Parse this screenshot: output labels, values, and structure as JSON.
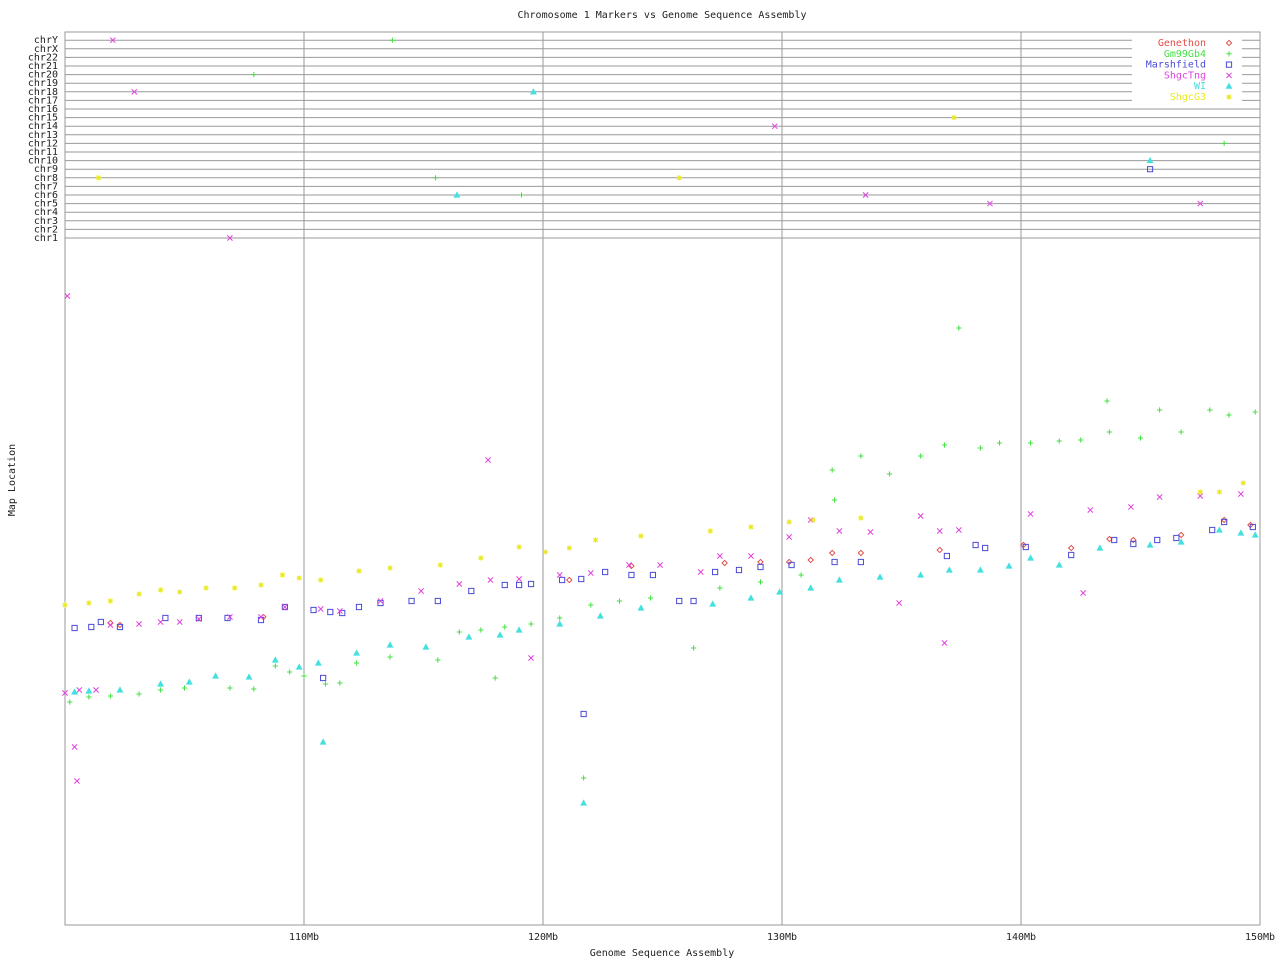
{
  "chart_data": {
    "type": "scatter",
    "title": "Chromosome 1 Markers vs Genome Sequence Assembly",
    "x_label": "Genome Sequence Assembly",
    "y_label": "Map Location",
    "xlim": [
      100,
      150
    ],
    "xticks": [
      {
        "value": 110,
        "label": "110Mb"
      },
      {
        "value": 120,
        "label": "120Mb"
      },
      {
        "value": 130,
        "label": "130Mb"
      },
      {
        "value": 140,
        "label": "140Mb"
      },
      {
        "value": 150,
        "label": "150Mb"
      }
    ],
    "ylim": [
      0,
      68
    ],
    "chromosomes": [
      "chr1",
      "chr2",
      "chr3",
      "chr4",
      "chr5",
      "chr6",
      "chr7",
      "chr8",
      "chr9",
      "chr10",
      "chr11",
      "chr12",
      "chr13",
      "chr14",
      "chr15",
      "chr16",
      "chr17",
      "chr18",
      "chr19",
      "chr20",
      "chr21",
      "chr22",
      "chrX",
      "chrY"
    ],
    "grid": true,
    "legend": "upper-right",
    "series": [
      {
        "name": "Genethon",
        "color": "#e0504a",
        "marker": "diamond",
        "x": [
          101.9,
          102.3,
          108.3,
          121.1,
          123.7,
          127.6,
          129.1,
          130.3,
          131.2,
          132.1,
          133.3,
          136.6,
          140.1,
          142.1,
          143.7,
          144.7,
          146.7,
          148.5,
          149.6
        ],
        "y": [
          30.2,
          30.0,
          30.8,
          34.5,
          35.9,
          36.2,
          36.3,
          36.3,
          36.5,
          37.2,
          37.2,
          37.5,
          38.0,
          37.7,
          38.6,
          38.5,
          39.0,
          40.5,
          40.0
        ]
      },
      {
        "name": "Gm99Gb4",
        "color": "#44e044",
        "marker": "plus",
        "x": [
          100.2,
          101.0,
          101.9,
          103.1,
          104.0,
          105.0,
          106.9,
          107.9,
          108.8,
          109.4,
          110.0,
          110.9,
          111.5,
          112.2,
          113.6,
          115.6,
          116.5,
          117.4,
          118.0,
          118.4,
          119.5,
          120.7,
          122.0,
          123.2,
          124.5,
          126.3,
          127.4,
          129.1,
          130.8,
          121.7,
          132.1,
          132.2,
          133.3,
          134.5,
          135.8,
          136.8,
          137.4,
          138.3,
          139.1,
          140.4,
          141.6,
          142.5,
          143.6,
          143.7,
          145.0,
          145.8,
          146.7,
          147.9,
          148.7,
          149.8
        ],
        "y": [
          22.3,
          22.8,
          22.9,
          23.1,
          23.5,
          23.7,
          23.7,
          23.6,
          25.9,
          25.3,
          24.9,
          24.1,
          24.2,
          26.2,
          26.8,
          26.5,
          29.3,
          29.5,
          24.7,
          29.8,
          30.1,
          30.7,
          32.0,
          32.4,
          32.7,
          27.7,
          33.7,
          34.3,
          35.0,
          14.7,
          45.5,
          42.5,
          46.9,
          45.1,
          46.9,
          48.0,
          59.7,
          47.7,
          48.2,
          48.2,
          48.4,
          48.5,
          52.4,
          49.3,
          48.7,
          51.5,
          49.3,
          51.5,
          51.0,
          51.3
        ],
        "off_x": [
          113.7,
          107.9,
          115.5,
          119.1,
          148.5
        ],
        "off_chrom": [
          "chrY",
          "chr20",
          "chr8",
          "chr6",
          "chr12"
        ]
      },
      {
        "name": "Marshfield",
        "color": "#4a4ad8",
        "marker": "square",
        "x": [
          100.4,
          101.1,
          101.5,
          102.3,
          104.2,
          105.6,
          106.8,
          108.2,
          109.2,
          110.4,
          111.1,
          111.6,
          112.3,
          113.2,
          114.5,
          115.6,
          117.0,
          118.4,
          119.0,
          119.5,
          120.8,
          121.6,
          122.6,
          123.7,
          124.6,
          125.7,
          126.3,
          127.2,
          128.2,
          129.1,
          130.4,
          132.2,
          133.3,
          136.9,
          138.1,
          138.5,
          140.2,
          142.1,
          143.9,
          144.7,
          145.7,
          146.5,
          148.0,
          148.5,
          149.7,
          121.7,
          110.8
        ],
        "y": [
          29.7,
          29.8,
          30.3,
          29.8,
          30.7,
          30.7,
          30.7,
          30.5,
          31.8,
          31.5,
          31.3,
          31.2,
          31.8,
          32.2,
          32.4,
          32.4,
          33.4,
          34.0,
          34.0,
          34.1,
          34.5,
          34.6,
          35.3,
          35.0,
          35.0,
          32.4,
          32.4,
          35.3,
          35.5,
          35.8,
          36.0,
          36.3,
          36.3,
          36.9,
          38.0,
          37.7,
          37.8,
          37.0,
          38.5,
          38.1,
          38.5,
          38.7,
          39.5,
          40.3,
          39.8,
          21.1,
          24.7
        ],
        "off_x": [
          145.4
        ],
        "off_chrom": [
          "chr9"
        ]
      },
      {
        "name": "ShgcTng",
        "color": "#e044e0",
        "marker": "x",
        "x": [
          100.1,
          100.0,
          100.4,
          100.5,
          100.6,
          101.3,
          101.9,
          103.1,
          104.0,
          104.8,
          105.6,
          106.9,
          108.2,
          109.2,
          110.7,
          111.5,
          113.2,
          114.9,
          116.5,
          117.7,
          117.8,
          119.0,
          119.5,
          120.7,
          122.0,
          123.6,
          124.9,
          126.6,
          127.4,
          128.7,
          130.3,
          131.2,
          132.4,
          133.7,
          134.9,
          135.8,
          136.6,
          136.8,
          137.4,
          140.4,
          142.6,
          142.9,
          144.6,
          145.8,
          147.5,
          149.2
        ],
        "y": [
          62.9,
          23.2,
          17.8,
          14.4,
          23.5,
          23.5,
          30.0,
          30.1,
          30.3,
          30.3,
          30.6,
          30.8,
          30.8,
          31.8,
          31.6,
          31.4,
          32.4,
          33.4,
          34.1,
          46.5,
          34.5,
          34.6,
          26.7,
          35.0,
          35.2,
          36.0,
          36.0,
          35.3,
          36.9,
          36.9,
          38.8,
          40.5,
          39.4,
          39.3,
          32.2,
          40.9,
          39.4,
          28.2,
          39.5,
          41.1,
          33.2,
          41.5,
          41.8,
          42.8,
          42.9,
          43.1
        ],
        "off_x": [
          102.0,
          102.9,
          129.7,
          133.5,
          138.7,
          147.5,
          106.9
        ],
        "off_chrom": [
          "chrY",
          "chr18",
          "chr14",
          "chr6",
          "chr5",
          "chr5",
          "chr1"
        ]
      },
      {
        "name": "WI",
        "color": "#44e0e0",
        "marker": "triangle",
        "x": [
          100.4,
          101.0,
          102.3,
          104.0,
          105.2,
          106.3,
          107.7,
          108.8,
          109.8,
          110.6,
          110.8,
          112.2,
          113.6,
          115.1,
          116.9,
          118.2,
          119.0,
          120.7,
          121.7,
          122.4,
          124.1,
          127.1,
          128.7,
          129.9,
          131.2,
          132.4,
          134.1,
          135.8,
          137.0,
          138.3,
          139.5,
          140.4,
          141.6,
          143.3,
          145.4,
          146.7,
          148.3,
          149.2,
          149.8
        ],
        "y": [
          23.3,
          23.4,
          23.5,
          24.1,
          24.3,
          24.9,
          24.8,
          26.5,
          25.8,
          26.2,
          18.3,
          27.2,
          28.0,
          27.8,
          28.8,
          29.0,
          29.5,
          30.1,
          12.2,
          30.9,
          31.7,
          32.1,
          32.7,
          33.3,
          33.7,
          34.5,
          34.8,
          35.0,
          35.5,
          35.5,
          35.9,
          36.7,
          36.0,
          37.7,
          38.0,
          38.3,
          39.5,
          39.2,
          39.0
        ],
        "off_x": [
          119.6,
          116.4,
          145.4
        ],
        "off_chrom": [
          "chr18",
          "chr6",
          "chr10"
        ]
      },
      {
        "name": "ShgcG3",
        "color": "#e8e820",
        "marker": "star",
        "x": [
          100.0,
          101.0,
          101.9,
          103.1,
          104.0,
          104.8,
          105.9,
          107.1,
          108.2,
          109.1,
          109.8,
          110.7,
          112.3,
          113.6,
          115.7,
          117.4,
          119.0,
          120.1,
          121.1,
          122.2,
          124.1,
          127.0,
          128.7,
          130.3,
          131.3,
          133.3,
          147.5,
          148.3,
          149.3
        ],
        "y": [
          32.0,
          32.2,
          32.4,
          33.1,
          33.5,
          33.3,
          33.7,
          33.7,
          34.0,
          35.0,
          34.7,
          34.5,
          35.4,
          35.7,
          36.0,
          36.7,
          37.8,
          37.3,
          37.7,
          38.5,
          38.9,
          39.4,
          39.8,
          40.3,
          40.5,
          40.7,
          43.3,
          43.3,
          44.2
        ],
        "off_x": [
          101.4,
          125.7,
          137.2
        ],
        "off_chrom": [
          "chr8",
          "chr8",
          "chr15"
        ]
      }
    ]
  }
}
